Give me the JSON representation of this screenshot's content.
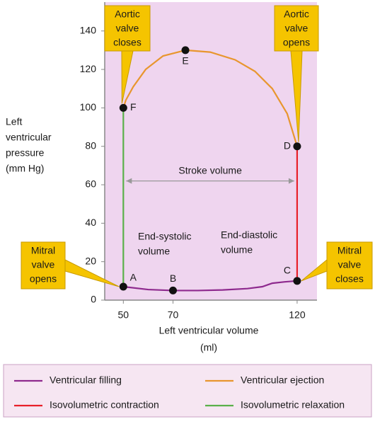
{
  "chart_data": {
    "type": "line",
    "xlabel": [
      "Left ventricular volume",
      "(ml)"
    ],
    "ylabel": [
      "Left",
      "ventricular",
      "pressure",
      "(mm Hg)"
    ],
    "xlim": [
      42.5,
      128
    ],
    "ylim": [
      0,
      155
    ],
    "xticks": [
      50,
      70,
      120
    ],
    "yticks": [
      0,
      20,
      40,
      60,
      80,
      100,
      120,
      140
    ],
    "background": "#efd5ef",
    "series": [
      {
        "name": "Ventricular filling",
        "color": "#8e2a8e",
        "x": [
          50,
          60,
          70,
          80,
          90,
          100,
          106,
          110,
          115,
          120
        ],
        "y": [
          7,
          5.5,
          5,
          5,
          5.3,
          6,
          7,
          8.8,
          9.5,
          10
        ]
      },
      {
        "name": "Ventricular ejection",
        "color": "#e8962e",
        "x": [
          120,
          116,
          110,
          103,
          95,
          85,
          75,
          66,
          59,
          54,
          51,
          50
        ],
        "y": [
          80,
          97,
          110,
          119,
          125,
          129,
          130,
          127,
          120,
          111,
          104,
          100
        ]
      },
      {
        "name": "Isovolumetric contraction",
        "color": "#e8202a",
        "x": [
          120,
          120
        ],
        "y": [
          10,
          80
        ]
      },
      {
        "name": "Isovolumetric relaxation",
        "color": "#5ab04a",
        "x": [
          50,
          50
        ],
        "y": [
          100,
          7
        ]
      }
    ],
    "points": [
      {
        "label": "A",
        "x": 50,
        "y": 7
      },
      {
        "label": "B",
        "x": 70,
        "y": 5
      },
      {
        "label": "C",
        "x": 120,
        "y": 10
      },
      {
        "label": "D",
        "x": 120,
        "y": 80
      },
      {
        "label": "E",
        "x": 75,
        "y": 130
      },
      {
        "label": "F",
        "x": 50,
        "y": 100
      }
    ],
    "callouts": [
      {
        "lines": [
          "Aortic",
          "valve",
          "closes"
        ]
      },
      {
        "lines": [
          "Aortic",
          "valve",
          "opens"
        ]
      },
      {
        "lines": [
          "Mitral",
          "valve",
          "opens"
        ]
      },
      {
        "lines": [
          "Mitral",
          "valve",
          "closes"
        ]
      }
    ],
    "notes": [
      {
        "lines": [
          "End-systolic",
          "volume"
        ]
      },
      {
        "lines": [
          "End-diastolic",
          "volume"
        ]
      }
    ],
    "stroke_volume": {
      "label": "Stroke volume",
      "from": 50,
      "to": 120,
      "y": 62
    }
  }
}
